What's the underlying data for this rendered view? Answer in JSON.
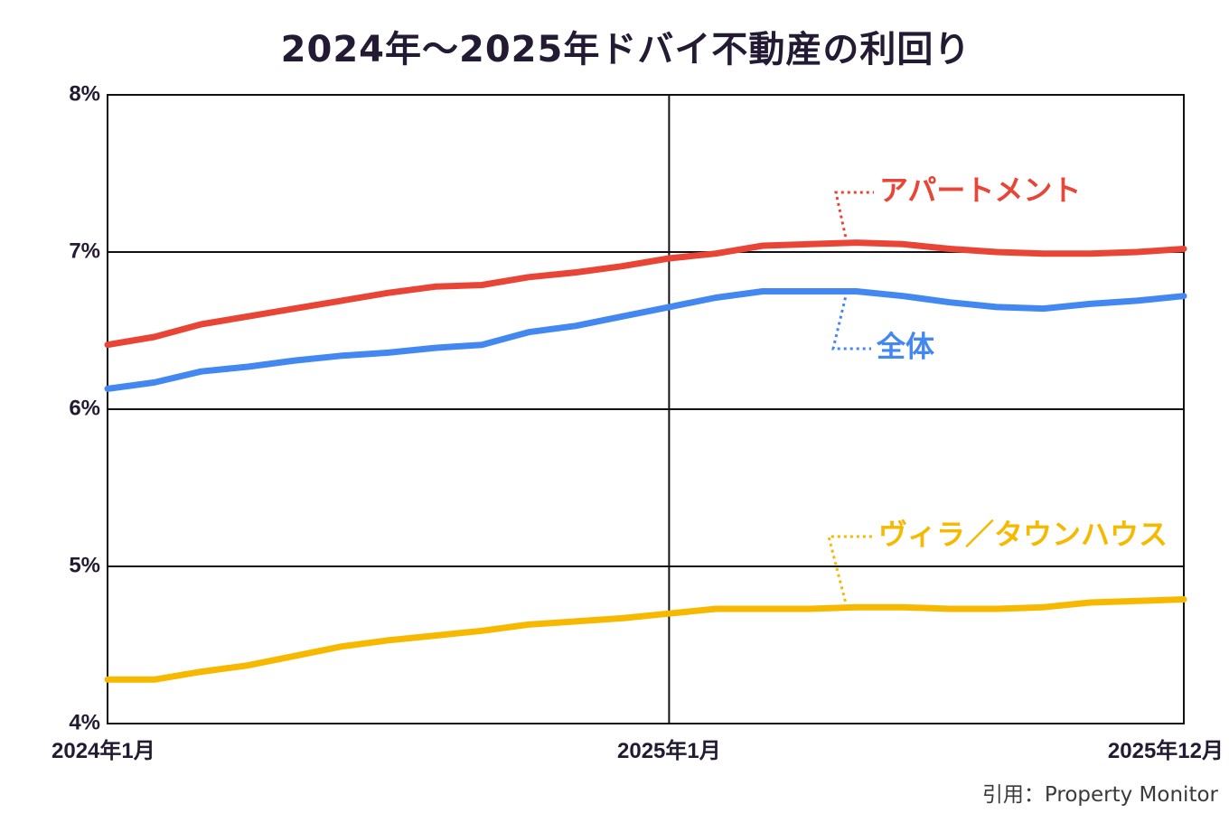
{
  "chart_data": {
    "type": "line",
    "title": "2024年～2025年ドバイ不動産の利回り",
    "source": "引用：Property Monitor",
    "x_tick_labels": [
      "2024年1月",
      "2025年1月",
      "2025年12月"
    ],
    "x_tick_index": [
      0,
      12,
      23
    ],
    "y_tick_labels": [
      "8%",
      "7%",
      "6%",
      "5%",
      "4%"
    ],
    "y_tick_values": [
      8,
      7,
      6,
      5,
      4
    ],
    "ylim": [
      4,
      8
    ],
    "grid": true,
    "months": 24,
    "series": [
      {
        "name": "アパートメント",
        "color": "#e84536",
        "values": [
          6.41,
          6.46,
          6.54,
          6.59,
          6.64,
          6.69,
          6.74,
          6.78,
          6.79,
          6.84,
          6.87,
          6.91,
          6.96,
          6.99,
          7.04,
          7.05,
          7.06,
          7.05,
          7.02,
          7.0,
          6.99,
          6.99,
          7.0,
          7.02
        ]
      },
      {
        "name": "全体",
        "color": "#4388f0",
        "values": [
          6.13,
          6.17,
          6.24,
          6.27,
          6.31,
          6.34,
          6.36,
          6.39,
          6.41,
          6.49,
          6.53,
          6.59,
          6.65,
          6.71,
          6.75,
          6.75,
          6.75,
          6.72,
          6.68,
          6.65,
          6.64,
          6.67,
          6.69,
          6.72
        ]
      },
      {
        "name": "ヴィラ／タウンハウス",
        "color": "#f7b900",
        "values": [
          4.28,
          4.28,
          4.33,
          4.37,
          4.43,
          4.49,
          4.53,
          4.56,
          4.59,
          4.63,
          4.65,
          4.67,
          4.7,
          4.73,
          4.73,
          4.73,
          4.74,
          4.74,
          4.73,
          4.73,
          4.74,
          4.77,
          4.78,
          4.79
        ]
      }
    ]
  }
}
